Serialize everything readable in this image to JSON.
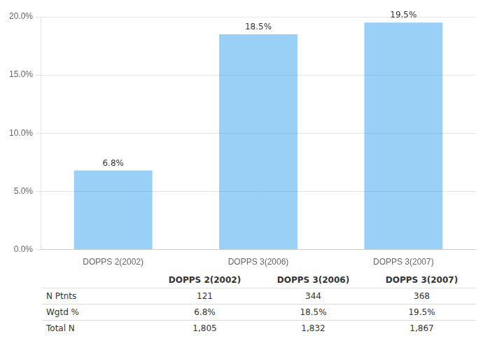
{
  "chart_data": {
    "type": "bar",
    "categories": [
      "DOPPS 2(2002)",
      "DOPPS 3(2006)",
      "DOPPS 3(2007)"
    ],
    "values": [
      6.8,
      18.5,
      19.5
    ],
    "value_labels": [
      "6.8%",
      "18.5%",
      "19.5%"
    ],
    "data_labels": true,
    "ylim": [
      0,
      20.0
    ],
    "yticks": [
      {
        "value": 0.0,
        "label": "0.0%"
      },
      {
        "value": 5.0,
        "label": "5.0%"
      },
      {
        "value": 10.0,
        "label": "10.0%"
      },
      {
        "value": 15.0,
        "label": "15.0%"
      },
      {
        "value": 20.0,
        "label": "20.0%"
      }
    ],
    "grid": true,
    "table": {
      "rows": [
        {
          "name": "N Ptnts",
          "values": [
            121,
            344,
            368
          ]
        },
        {
          "name": "Wgtd %",
          "values": [
            6.8,
            18.5,
            19.5
          ],
          "value_labels": [
            "6.8%",
            "18.5%",
            "19.5%"
          ]
        },
        {
          "name": "Total N",
          "values": [
            1805,
            1832,
            1867
          ],
          "value_labels": [
            "1,805",
            "1,832",
            "1,867"
          ]
        }
      ]
    }
  }
}
